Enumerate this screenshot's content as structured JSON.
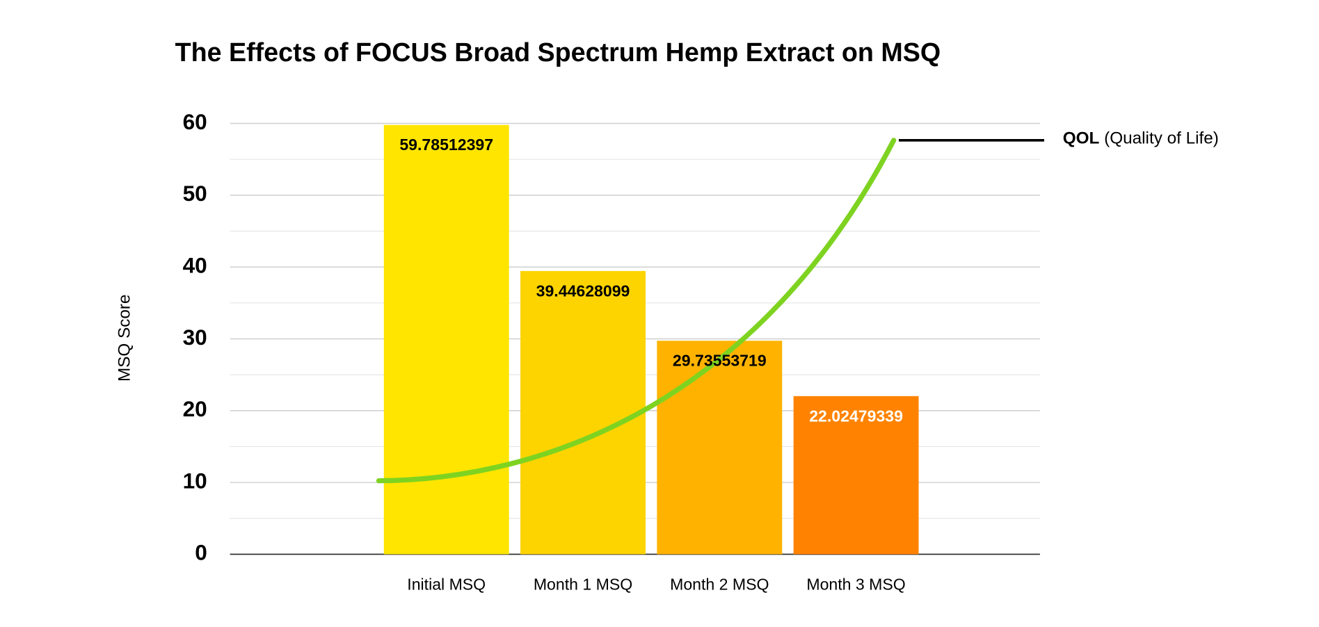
{
  "chart_data": {
    "type": "bar",
    "title": "The Effects of FOCUS Broad Spectrum Hemp Extract on MSQ",
    "y_label": "MSQ Score",
    "categories": [
      "Initial MSQ",
      "Month 1 MSQ",
      "Month 2 MSQ",
      "Month 3 MSQ"
    ],
    "values": [
      59.78512397,
      39.44628099,
      29.73553719,
      22.02479339
    ],
    "colors": [
      "#ffe500",
      "#fdd400",
      "#ffb300",
      "#ff8300"
    ],
    "value_label_colors": [
      "#000000",
      "#000000",
      "#000000",
      "#ffffff"
    ],
    "ylim": [
      0,
      60
    ],
    "yticks": [
      0,
      10,
      20,
      30,
      40,
      50,
      60
    ],
    "minor_yticks": [
      5,
      15,
      25,
      35,
      45,
      55
    ],
    "grid": true,
    "annotation": {
      "label_bold": "QOL",
      "label_rest": "(Quality of Life)",
      "color": "#7ed321"
    }
  }
}
